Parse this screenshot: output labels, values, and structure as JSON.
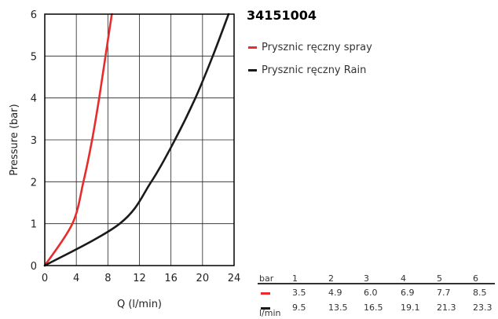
{
  "chart_data": {
    "type": "line",
    "title": "34151004",
    "xlabel": "Q (l/min)",
    "ylabel": "Pressure (bar)",
    "xlim": [
      0,
      24
    ],
    "ylim": [
      0,
      6
    ],
    "x_ticks": [
      "0",
      "4",
      "8",
      "12",
      "16",
      "20",
      "24"
    ],
    "y_ticks": [
      "0",
      "1",
      "2",
      "3",
      "4",
      "5",
      "6"
    ],
    "grid": true,
    "legend_position": "right",
    "series": [
      {
        "name": "Prysznic ręczny spray",
        "color": "#e82c2c",
        "points": [
          [
            0,
            0
          ],
          [
            3.5,
            1
          ],
          [
            4.9,
            2
          ],
          [
            6.0,
            3
          ],
          [
            6.9,
            4
          ],
          [
            7.7,
            5
          ],
          [
            8.5,
            6
          ]
        ]
      },
      {
        "name": "Prysznic ręczny Rain",
        "color": "#1a1a1a",
        "points": [
          [
            0,
            0
          ],
          [
            9.5,
            1
          ],
          [
            13.5,
            2
          ],
          [
            16.5,
            3
          ],
          [
            19.1,
            4
          ],
          [
            21.3,
            5
          ],
          [
            23.3,
            6
          ]
        ]
      }
    ]
  },
  "table": {
    "bar_label": "bar",
    "unit_label": "l/min",
    "bar_values": [
      "1",
      "2",
      "3",
      "4",
      "5",
      "6"
    ],
    "rows": [
      {
        "color": "#e82c2c",
        "values": [
          "3.5",
          "4.9",
          "6.0",
          "6.9",
          "7.7",
          "8.5"
        ]
      },
      {
        "color": "#1a1a1a",
        "values": [
          "9.5",
          "13.5",
          "16.5",
          "19.1",
          "21.3",
          "23.3"
        ]
      }
    ]
  }
}
